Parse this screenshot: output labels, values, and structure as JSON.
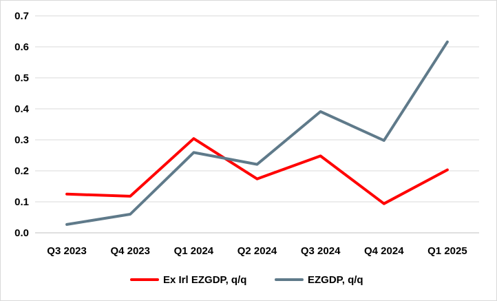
{
  "chart_data": {
    "type": "line",
    "title": "",
    "xlabel": "",
    "ylabel": "",
    "categories": [
      "Q3 2023",
      "Q4 2023",
      "Q1 2024",
      "Q2 2024",
      "Q3 2024",
      "Q4 2024",
      "Q1 2025"
    ],
    "ylim": [
      0,
      0.7
    ],
    "y_ticks": [
      "0.0",
      "0.1",
      "0.2",
      "0.3",
      "0.4",
      "0.5",
      "0.6",
      "0.7"
    ],
    "grid": "horizontal",
    "legend_position": "bottom",
    "series": [
      {
        "name": "Ex Irl EZGDP, q/q",
        "color": "#ff0000",
        "values": [
          0.125,
          0.118,
          0.304,
          0.174,
          0.248,
          0.094,
          0.203
        ]
      },
      {
        "name": "EZGDP, q/q",
        "color": "#5f7a8a",
        "values": [
          0.027,
          0.06,
          0.259,
          0.221,
          0.391,
          0.298,
          0.616
        ]
      }
    ]
  }
}
